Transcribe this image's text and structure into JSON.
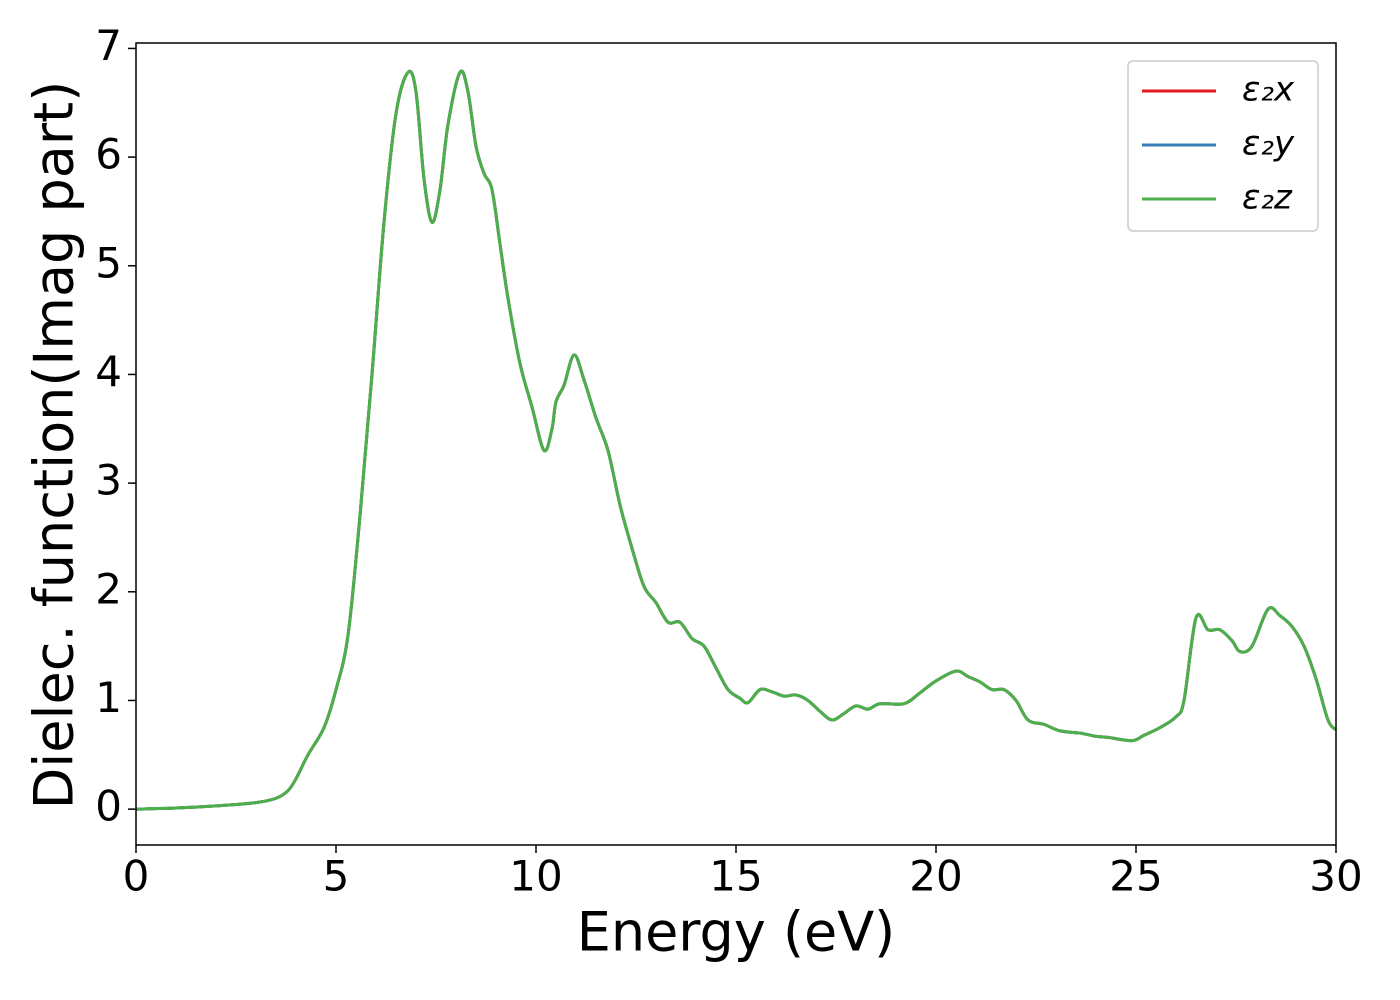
{
  "chart_data": {
    "type": "line",
    "xlabel": "Energy (eV)",
    "ylabel": "Dielec. function(Imag part)",
    "x": [
      0,
      1,
      2,
      3,
      3.5,
      3.8,
      4.0,
      4.3,
      4.7,
      5.0,
      5.3,
      5.6,
      5.9,
      6.2,
      6.5,
      6.8,
      7.0,
      7.2,
      7.4,
      7.6,
      7.8,
      8.1,
      8.3,
      8.5,
      8.7,
      8.9,
      9.1,
      9.3,
      9.6,
      9.9,
      10.2,
      10.4,
      10.5,
      10.7,
      10.95,
      11.2,
      11.5,
      11.8,
      12.1,
      12.4,
      12.7,
      13.0,
      13.3,
      13.6,
      13.9,
      14.2,
      14.5,
      14.8,
      15.1,
      15.3,
      15.6,
      15.9,
      16.2,
      16.5,
      16.8,
      17.1,
      17.4,
      17.7,
      18.0,
      18.3,
      18.6,
      19.2,
      19.6,
      20.0,
      20.5,
      20.8,
      21.1,
      21.4,
      21.7,
      22.0,
      22.3,
      22.7,
      23.1,
      23.6,
      24.0,
      24.3,
      24.9,
      25.2,
      25.6,
      26.0,
      26.2,
      26.5,
      26.8,
      27.1,
      27.4,
      27.6,
      27.9,
      28.3,
      28.6,
      28.9,
      29.2,
      29.5,
      29.8,
      30.0
    ],
    "series": [
      {
        "name": "ε₂x",
        "color": "#e41a1c",
        "values": [
          0.0,
          0.01,
          0.03,
          0.06,
          0.1,
          0.17,
          0.28,
          0.5,
          0.75,
          1.1,
          1.6,
          2.7,
          4.0,
          5.4,
          6.4,
          6.78,
          6.6,
          5.8,
          5.4,
          5.7,
          6.3,
          6.78,
          6.6,
          6.1,
          5.85,
          5.7,
          5.2,
          4.7,
          4.1,
          3.7,
          3.3,
          3.5,
          3.75,
          3.9,
          4.18,
          3.95,
          3.6,
          3.3,
          2.8,
          2.4,
          2.05,
          1.9,
          1.72,
          1.72,
          1.57,
          1.5,
          1.3,
          1.1,
          1.02,
          0.98,
          1.1,
          1.08,
          1.04,
          1.05,
          1.0,
          0.9,
          0.82,
          0.88,
          0.95,
          0.92,
          0.97,
          0.97,
          1.07,
          1.18,
          1.27,
          1.22,
          1.17,
          1.1,
          1.1,
          1.0,
          0.82,
          0.78,
          0.72,
          0.7,
          0.67,
          0.66,
          0.63,
          0.68,
          0.75,
          0.85,
          1.0,
          1.76,
          1.65,
          1.65,
          1.55,
          1.45,
          1.5,
          1.84,
          1.78,
          1.68,
          1.5,
          1.2,
          0.82,
          0.73
        ]
      },
      {
        "name": "ε₂y",
        "color": "#377eb8",
        "values": [
          0.0,
          0.01,
          0.03,
          0.06,
          0.1,
          0.17,
          0.28,
          0.5,
          0.75,
          1.1,
          1.6,
          2.7,
          4.0,
          5.4,
          6.4,
          6.78,
          6.6,
          5.8,
          5.4,
          5.7,
          6.3,
          6.78,
          6.6,
          6.1,
          5.85,
          5.7,
          5.2,
          4.7,
          4.1,
          3.7,
          3.3,
          3.5,
          3.75,
          3.9,
          4.18,
          3.95,
          3.6,
          3.3,
          2.8,
          2.4,
          2.05,
          1.9,
          1.72,
          1.72,
          1.57,
          1.5,
          1.3,
          1.1,
          1.02,
          0.98,
          1.1,
          1.08,
          1.04,
          1.05,
          1.0,
          0.9,
          0.82,
          0.88,
          0.95,
          0.92,
          0.97,
          0.97,
          1.07,
          1.18,
          1.27,
          1.22,
          1.17,
          1.1,
          1.1,
          1.0,
          0.82,
          0.78,
          0.72,
          0.7,
          0.67,
          0.66,
          0.63,
          0.68,
          0.75,
          0.85,
          1.0,
          1.76,
          1.65,
          1.65,
          1.55,
          1.45,
          1.5,
          1.84,
          1.78,
          1.68,
          1.5,
          1.2,
          0.82,
          0.73
        ]
      },
      {
        "name": "ε₂z",
        "color": "#4daf4a",
        "values": [
          0.0,
          0.01,
          0.03,
          0.06,
          0.1,
          0.17,
          0.28,
          0.5,
          0.75,
          1.1,
          1.6,
          2.7,
          4.0,
          5.4,
          6.4,
          6.78,
          6.6,
          5.8,
          5.4,
          5.7,
          6.3,
          6.78,
          6.6,
          6.1,
          5.85,
          5.7,
          5.2,
          4.7,
          4.1,
          3.7,
          3.3,
          3.5,
          3.75,
          3.9,
          4.18,
          3.95,
          3.6,
          3.3,
          2.8,
          2.4,
          2.05,
          1.9,
          1.72,
          1.72,
          1.57,
          1.5,
          1.3,
          1.1,
          1.02,
          0.98,
          1.1,
          1.08,
          1.04,
          1.05,
          1.0,
          0.9,
          0.82,
          0.88,
          0.95,
          0.92,
          0.97,
          0.97,
          1.07,
          1.18,
          1.27,
          1.22,
          1.17,
          1.1,
          1.1,
          1.0,
          0.82,
          0.78,
          0.72,
          0.7,
          0.67,
          0.66,
          0.63,
          0.68,
          0.75,
          0.85,
          1.0,
          1.76,
          1.65,
          1.65,
          1.55,
          1.45,
          1.5,
          1.84,
          1.78,
          1.68,
          1.5,
          1.2,
          0.82,
          0.73
        ]
      }
    ],
    "xlim": [
      0,
      30
    ],
    "xticks": [
      0,
      5,
      10,
      15,
      20,
      25,
      30
    ],
    "ylim": [
      -0.33,
      7.05
    ],
    "yticks": [
      0,
      1,
      2,
      3,
      4,
      5,
      6,
      7
    ],
    "grid": false,
    "legend": "upper right"
  }
}
